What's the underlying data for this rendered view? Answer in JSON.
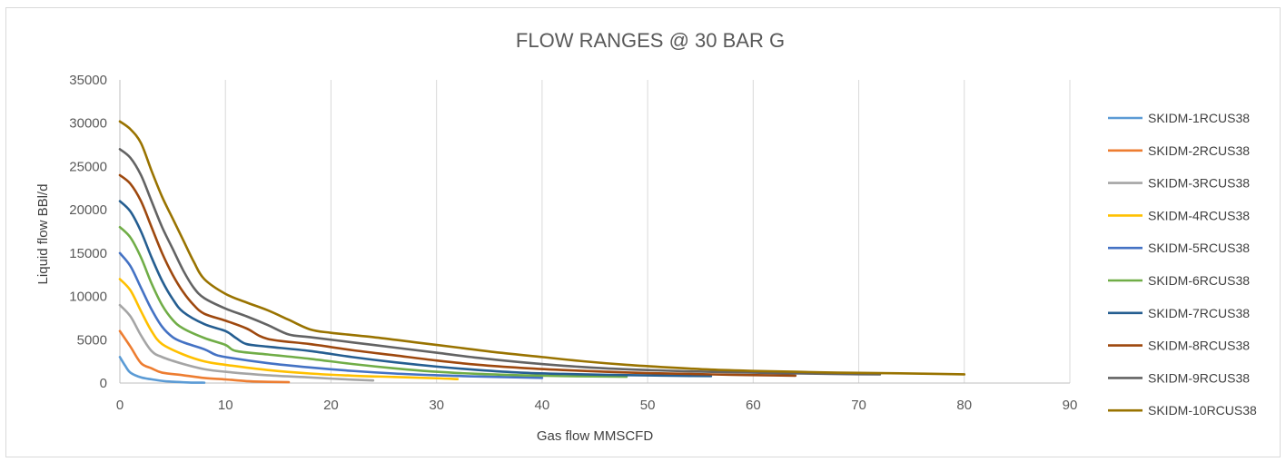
{
  "chart_data": {
    "type": "line",
    "title": "FLOW RANGES @ 30 BAR G",
    "xlabel": "Gas flow MMSCFD",
    "ylabel": "Liquid flow BBl/d",
    "xlim": [
      0,
      90
    ],
    "ylim": [
      0,
      35000
    ],
    "xticks": [
      "0",
      "10",
      "20",
      "30",
      "40",
      "50",
      "60",
      "70",
      "80",
      "90"
    ],
    "yticks": [
      "0",
      "5000",
      "10000",
      "15000",
      "20000",
      "25000",
      "30000",
      "35000"
    ],
    "grid": "vertical",
    "legend_position": "right",
    "series": [
      {
        "name": "SKIDM-1RCUS38",
        "color": "#5b9bd5",
        "points": [
          [
            0,
            3000
          ],
          [
            0.5,
            2000
          ],
          [
            1,
            1200
          ],
          [
            2,
            650
          ],
          [
            3,
            430
          ],
          [
            4,
            250
          ],
          [
            5,
            150
          ],
          [
            6,
            90
          ],
          [
            7,
            50
          ],
          [
            8,
            40
          ]
        ]
      },
      {
        "name": "SKIDM-2RCUS38",
        "color": "#ed7d31",
        "points": [
          [
            0,
            6000
          ],
          [
            1,
            4200
          ],
          [
            2,
            2300
          ],
          [
            3,
            1700
          ],
          [
            4,
            1200
          ],
          [
            6,
            900
          ],
          [
            8,
            580
          ],
          [
            10,
            420
          ],
          [
            12,
            220
          ],
          [
            14,
            140
          ],
          [
            16,
            100
          ]
        ]
      },
      {
        "name": "SKIDM-3RCUS38",
        "color": "#a5a5a5",
        "points": [
          [
            0,
            9000
          ],
          [
            1,
            7700
          ],
          [
            2,
            5500
          ],
          [
            3,
            3700
          ],
          [
            4,
            3000
          ],
          [
            6,
            2200
          ],
          [
            8,
            1600
          ],
          [
            10,
            1300
          ],
          [
            14,
            900
          ],
          [
            18,
            650
          ],
          [
            21,
            450
          ],
          [
            24,
            300
          ]
        ]
      },
      {
        "name": "SKIDM-4RCUS38",
        "color": "#ffc000",
        "points": [
          [
            0,
            12000
          ],
          [
            1,
            10700
          ],
          [
            2,
            8300
          ],
          [
            3,
            6000
          ],
          [
            4,
            4500
          ],
          [
            6,
            3300
          ],
          [
            8,
            2500
          ],
          [
            10,
            2100
          ],
          [
            14,
            1500
          ],
          [
            18,
            1100
          ],
          [
            22,
            850
          ],
          [
            26,
            700
          ],
          [
            30,
            550
          ],
          [
            32,
            450
          ]
        ]
      },
      {
        "name": "SKIDM-5RCUS38",
        "color": "#4472c4",
        "points": [
          [
            0,
            15000
          ],
          [
            1,
            13500
          ],
          [
            2,
            11000
          ],
          [
            3,
            8500
          ],
          [
            4,
            6500
          ],
          [
            5,
            5300
          ],
          [
            6,
            4700
          ],
          [
            8,
            3900
          ],
          [
            9,
            3300
          ],
          [
            10,
            3000
          ],
          [
            14,
            2300
          ],
          [
            18,
            1800
          ],
          [
            22,
            1400
          ],
          [
            26,
            1100
          ],
          [
            30,
            900
          ],
          [
            34,
            750
          ],
          [
            38,
            650
          ],
          [
            40,
            600
          ]
        ]
      },
      {
        "name": "SKIDM-6RCUS38",
        "color": "#70ad47",
        "points": [
          [
            0,
            18000
          ],
          [
            1,
            16800
          ],
          [
            2,
            14500
          ],
          [
            3,
            11500
          ],
          [
            4,
            9000
          ],
          [
            5,
            7300
          ],
          [
            6,
            6300
          ],
          [
            8,
            5200
          ],
          [
            10,
            4400
          ],
          [
            11,
            3700
          ],
          [
            14,
            3300
          ],
          [
            18,
            2800
          ],
          [
            22,
            2200
          ],
          [
            26,
            1700
          ],
          [
            30,
            1300
          ],
          [
            34,
            1050
          ],
          [
            38,
            900
          ],
          [
            42,
            800
          ],
          [
            46,
            750
          ],
          [
            48,
            720
          ]
        ]
      },
      {
        "name": "SKIDM-7RCUS38",
        "color": "#255e91",
        "points": [
          [
            0,
            21000
          ],
          [
            1,
            19800
          ],
          [
            2,
            17500
          ],
          [
            3,
            14500
          ],
          [
            4,
            11800
          ],
          [
            5,
            9700
          ],
          [
            6,
            8200
          ],
          [
            8,
            6800
          ],
          [
            10,
            6000
          ],
          [
            11,
            5200
          ],
          [
            12,
            4500
          ],
          [
            14,
            4200
          ],
          [
            18,
            3700
          ],
          [
            22,
            3000
          ],
          [
            26,
            2400
          ],
          [
            30,
            1900
          ],
          [
            34,
            1500
          ],
          [
            38,
            1200
          ],
          [
            42,
            1050
          ],
          [
            46,
            950
          ],
          [
            50,
            880
          ],
          [
            54,
            820
          ],
          [
            56,
            800
          ]
        ]
      },
      {
        "name": "SKIDM-8RCUS38",
        "color": "#9e480e",
        "points": [
          [
            0,
            24000
          ],
          [
            1,
            23000
          ],
          [
            2,
            21000
          ],
          [
            3,
            18000
          ],
          [
            4,
            15000
          ],
          [
            5,
            12500
          ],
          [
            6,
            10500
          ],
          [
            7,
            9000
          ],
          [
            8,
            8000
          ],
          [
            10,
            7200
          ],
          [
            12,
            6300
          ],
          [
            14,
            5100
          ],
          [
            18,
            4500
          ],
          [
            22,
            3800
          ],
          [
            26,
            3200
          ],
          [
            30,
            2600
          ],
          [
            34,
            2100
          ],
          [
            38,
            1750
          ],
          [
            42,
            1500
          ],
          [
            46,
            1300
          ],
          [
            50,
            1150
          ],
          [
            54,
            1050
          ],
          [
            58,
            950
          ],
          [
            62,
            880
          ],
          [
            64,
            850
          ]
        ]
      },
      {
        "name": "SKIDM-9RCUS38",
        "color": "#636363",
        "points": [
          [
            0,
            27000
          ],
          [
            1,
            26000
          ],
          [
            2,
            24000
          ],
          [
            3,
            21000
          ],
          [
            4,
            18000
          ],
          [
            5,
            15500
          ],
          [
            6,
            13000
          ],
          [
            7,
            11000
          ],
          [
            8,
            9800
          ],
          [
            10,
            8600
          ],
          [
            12,
            7700
          ],
          [
            14,
            6700
          ],
          [
            16,
            5600
          ],
          [
            18,
            5300
          ],
          [
            22,
            4700
          ],
          [
            26,
            4100
          ],
          [
            30,
            3500
          ],
          [
            34,
            2900
          ],
          [
            38,
            2400
          ],
          [
            42,
            2000
          ],
          [
            46,
            1700
          ],
          [
            50,
            1500
          ],
          [
            54,
            1350
          ],
          [
            58,
            1250
          ],
          [
            62,
            1150
          ],
          [
            66,
            1080
          ],
          [
            70,
            1020
          ],
          [
            72,
            1000
          ]
        ]
      },
      {
        "name": "SKIDM-10RCUS38",
        "color": "#997300",
        "points": [
          [
            0,
            30200
          ],
          [
            1,
            29300
          ],
          [
            2,
            27700
          ],
          [
            3,
            24500
          ],
          [
            4,
            21500
          ],
          [
            5,
            19000
          ],
          [
            6,
            16500
          ],
          [
            7,
            14000
          ],
          [
            8,
            12000
          ],
          [
            10,
            10300
          ],
          [
            12,
            9300
          ],
          [
            14,
            8400
          ],
          [
            16,
            7300
          ],
          [
            18,
            6200
          ],
          [
            20,
            5800
          ],
          [
            24,
            5300
          ],
          [
            28,
            4700
          ],
          [
            32,
            4100
          ],
          [
            36,
            3500
          ],
          [
            40,
            3000
          ],
          [
            44,
            2500
          ],
          [
            48,
            2100
          ],
          [
            52,
            1800
          ],
          [
            56,
            1550
          ],
          [
            60,
            1400
          ],
          [
            64,
            1300
          ],
          [
            68,
            1200
          ],
          [
            72,
            1150
          ],
          [
            76,
            1080
          ],
          [
            80,
            1000
          ]
        ]
      }
    ]
  }
}
